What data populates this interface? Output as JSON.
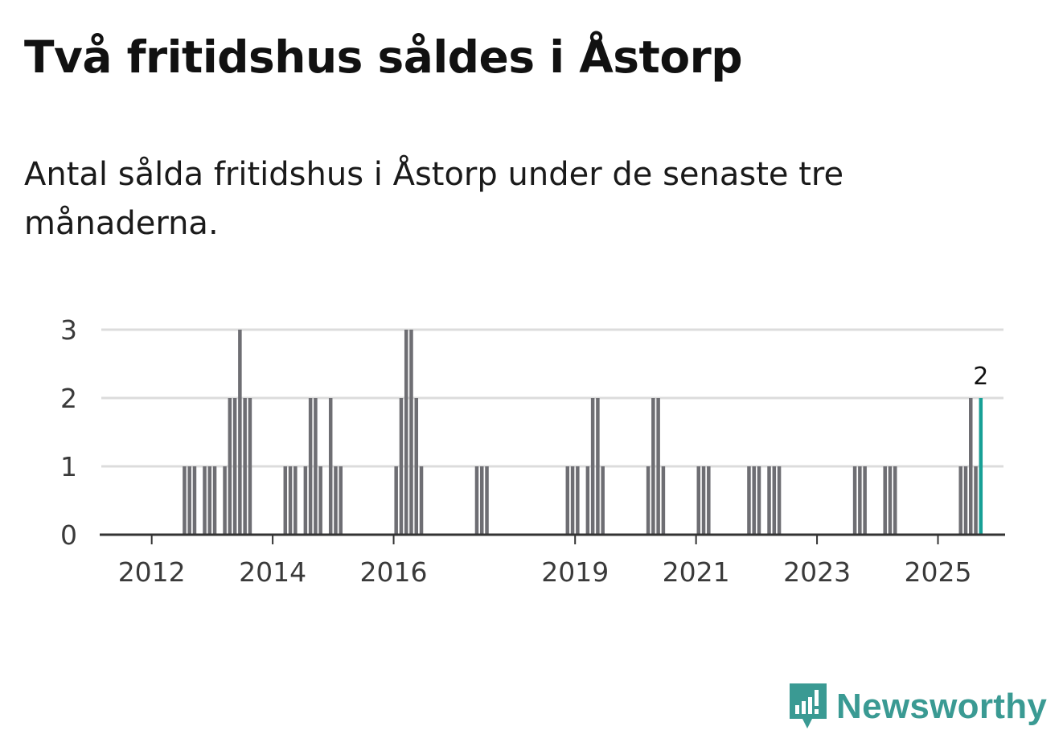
{
  "title": "Två fritidshus såldes i Åstorp",
  "subtitle": "Antal sålda fritidshus i Åstorp under de senaste tre månaderna.",
  "brand": {
    "name": "Newsworthy",
    "icon": "newsworthy-logo-icon"
  },
  "colors": {
    "bar": "#6e6e73",
    "highlight": "#17a096",
    "grid": "#dcdcdc",
    "axis": "#333333",
    "brand": "#3a9a93"
  },
  "chart_data": {
    "type": "bar",
    "title": "Två fritidshus såldes i Åstorp",
    "xlabel": "",
    "ylabel": "",
    "ylim": [
      0,
      3
    ],
    "yticks": [
      0,
      1,
      2,
      3
    ],
    "xticks": [
      "2012",
      "2014",
      "2016",
      "2019",
      "2021",
      "2023",
      "2025"
    ],
    "grid": true,
    "legend": "none",
    "x_range": [
      "2011-03",
      "2026-02"
    ],
    "highlight_label": "2",
    "series": [
      {
        "x": [
          "2012-07",
          "2012-08",
          "2012-09",
          "2012-11",
          "2012-12",
          "2013-01",
          "2013-03",
          "2013-04",
          "2013-05",
          "2013-06",
          "2013-07",
          "2013-08",
          "2014-03",
          "2014-04",
          "2014-05",
          "2014-07",
          "2014-08",
          "2014-09",
          "2014-10",
          "2014-12",
          "2015-01",
          "2015-02",
          "2016-01",
          "2016-02",
          "2016-03",
          "2016-04",
          "2016-05",
          "2016-06",
          "2017-05",
          "2017-06",
          "2017-07",
          "2018-11",
          "2018-12",
          "2019-01",
          "2019-03",
          "2019-04",
          "2019-05",
          "2019-06",
          "2020-03",
          "2020-04",
          "2020-05",
          "2020-06",
          "2021-01",
          "2021-02",
          "2021-03",
          "2021-11",
          "2021-12",
          "2022-01",
          "2022-03",
          "2022-04",
          "2022-05",
          "2023-08",
          "2023-09",
          "2023-10",
          "2024-02",
          "2024-03",
          "2024-04",
          "2025-05",
          "2025-06",
          "2025-07",
          "2025-08",
          "2025-09"
        ],
        "values": [
          1,
          1,
          1,
          1,
          1,
          1,
          1,
          2,
          2,
          3,
          2,
          2,
          1,
          1,
          1,
          1,
          2,
          2,
          1,
          2,
          1,
          1,
          1,
          2,
          3,
          3,
          2,
          1,
          1,
          1,
          1,
          1,
          1,
          1,
          1,
          2,
          2,
          1,
          1,
          2,
          2,
          1,
          1,
          1,
          1,
          1,
          1,
          1,
          1,
          1,
          1,
          1,
          1,
          1,
          1,
          1,
          1,
          1,
          1,
          2,
          1,
          2
        ],
        "highlight": "2025-09"
      }
    ]
  }
}
